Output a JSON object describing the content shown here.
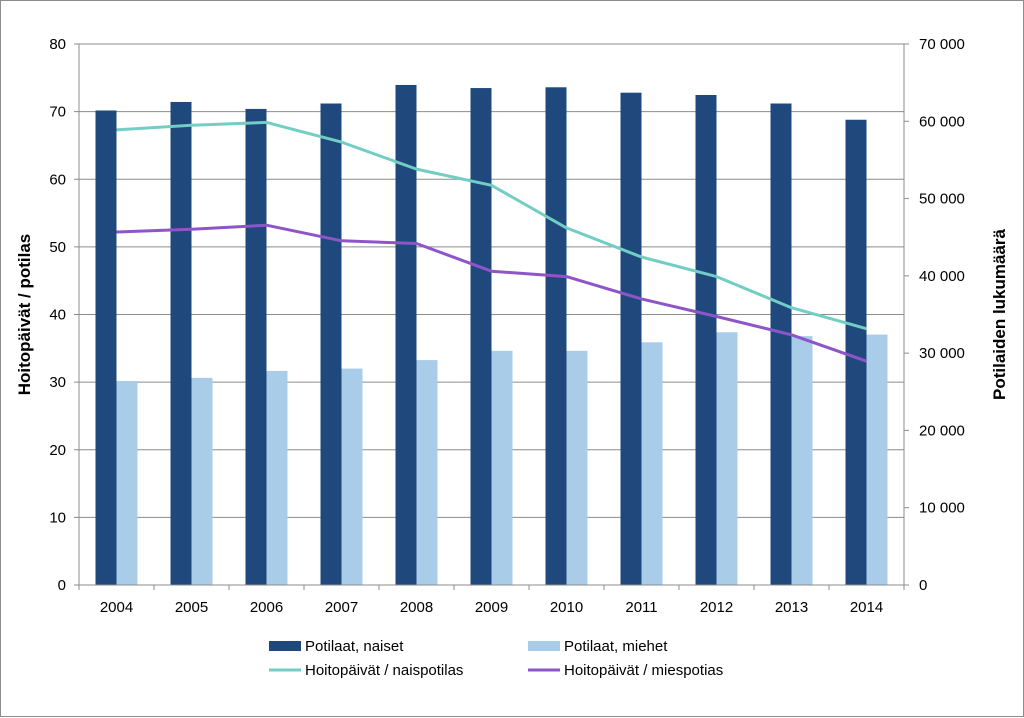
{
  "chart_data": {
    "type": "bar",
    "categories": [
      "2004",
      "2005",
      "2006",
      "2007",
      "2008",
      "2009",
      "2010",
      "2011",
      "2012",
      "2013",
      "2014"
    ],
    "series": [
      {
        "name": "Potilaat, naiset",
        "kind": "bar",
        "axis": "right",
        "color": "#1f497d",
        "values": [
          61400,
          62500,
          61600,
          62300,
          64700,
          64300,
          64400,
          63700,
          63400,
          62300,
          60200
        ]
      },
      {
        "name": "Potilaat, miehet",
        "kind": "bar",
        "axis": "right",
        "color": "#a9cce9",
        "values": [
          26400,
          26800,
          27700,
          28000,
          29100,
          30300,
          30300,
          31400,
          32700,
          32200,
          32400
        ]
      },
      {
        "name": "Hoitopäivät / naispotilas",
        "kind": "line",
        "axis": "left",
        "color": "#72cdc4",
        "values": [
          67.3,
          68.0,
          68.4,
          65.5,
          61.5,
          59.1,
          52.8,
          48.5,
          45.6,
          41.0,
          37.9
        ]
      },
      {
        "name": "Hoitopäivät / miespotias",
        "kind": "line",
        "axis": "left",
        "color": "#8e55c8",
        "values": [
          52.2,
          52.6,
          53.2,
          50.9,
          50.5,
          46.4,
          45.6,
          42.3,
          39.7,
          37.0,
          33.1
        ]
      }
    ],
    "y_left": {
      "label": "Hoitopäivät / potilas",
      "min": 0,
      "max": 80,
      "ticks": [
        "0",
        "10",
        "20",
        "30",
        "40",
        "50",
        "60",
        "70",
        "80"
      ]
    },
    "y_right": {
      "label": "Potilaiden lukumäärä",
      "min": 0,
      "max": 70000,
      "ticks": [
        "0",
        "10 000",
        "20 000",
        "30 000",
        "40 000",
        "50 000",
        "60 000",
        "70 000"
      ]
    },
    "grid": true,
    "legend": "bottom"
  }
}
